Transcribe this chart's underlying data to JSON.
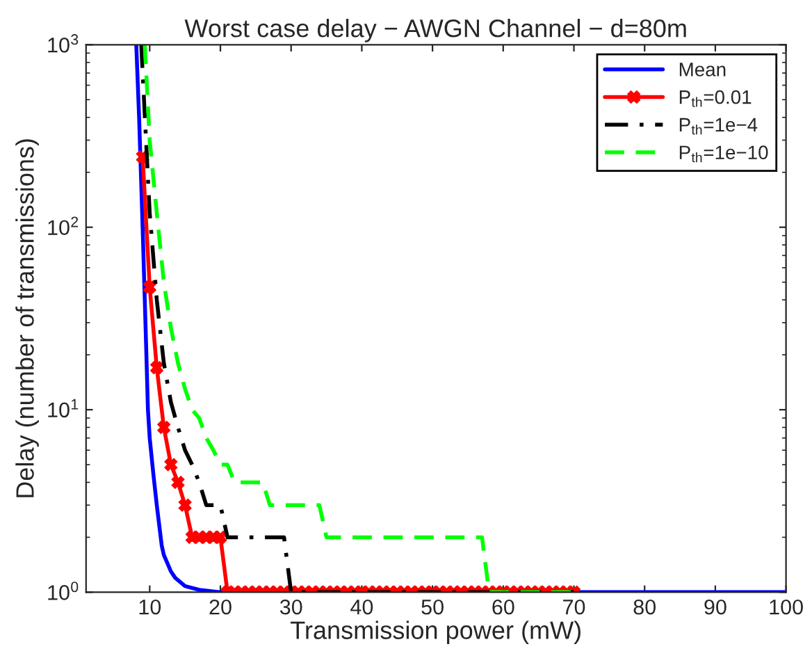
{
  "chart_data": {
    "type": "line",
    "title": "Worst case delay − AWGN Channel − d=80m",
    "xlabel": "Transmission power (mW)",
    "ylabel": "Delay (number of transmissions)",
    "log": "y",
    "xlim": [
      1,
      100
    ],
    "xticks": [
      10,
      20,
      30,
      40,
      50,
      60,
      70,
      80,
      90,
      100
    ],
    "ylim": [
      1,
      1000
    ],
    "yticks": [
      {
        "value": 1,
        "label": "10$^{0}$"
      },
      {
        "value": 10,
        "label": "10$^{1}$"
      },
      {
        "value": 100,
        "label": "10$^{2}$"
      },
      {
        "value": 1000,
        "label": "10$^{3}$"
      }
    ],
    "grid": false,
    "legend": "top right",
    "series": [
      {
        "name": "Mean",
        "color": "#0000ff",
        "line_style": "solid",
        "marker": "none",
        "x": [
          8.1,
          8.5,
          9,
          9.5,
          9.75,
          10,
          10.5,
          11,
          11.7,
          12,
          13,
          13.6,
          15,
          17,
          20,
          100
        ],
        "values": [
          1000,
          400,
          100,
          22,
          10,
          7,
          4.5,
          3,
          1.8,
          1.6,
          1.3,
          1.2,
          1.08,
          1.03,
          1,
          1
        ]
      },
      {
        "name": "P$_{th}$=0.01",
        "color": "#ff0000",
        "line_style": "solid",
        "marker": "cross",
        "x": [
          9,
          10,
          11,
          12,
          13,
          14,
          15,
          16,
          17,
          18,
          19,
          20,
          21,
          22,
          23,
          24,
          25,
          26,
          27,
          28,
          29,
          30,
          31,
          32,
          33,
          34,
          35,
          36,
          37,
          38,
          39,
          40,
          41,
          42,
          43,
          44,
          45,
          46,
          47,
          48,
          49,
          50,
          51,
          52,
          53,
          54,
          55,
          56,
          57,
          58,
          59,
          60,
          61,
          62,
          63,
          64,
          65,
          66,
          67,
          68,
          69,
          70
        ],
        "values": [
          243,
          47,
          17,
          8,
          5,
          4,
          3,
          2,
          2,
          2,
          2,
          2,
          1,
          1,
          1,
          1,
          1,
          1,
          1,
          1,
          1,
          1,
          1,
          1,
          1,
          1,
          1,
          1,
          1,
          1,
          1,
          1,
          1,
          1,
          1,
          1,
          1,
          1,
          1,
          1,
          1,
          1,
          1,
          1,
          1,
          1,
          1,
          1,
          1,
          1,
          1,
          1,
          1,
          1,
          1,
          1,
          1,
          1,
          1,
          1,
          1,
          1
        ]
      },
      {
        "name": "P$_{th}$=1e−4",
        "color": "#000000",
        "line_style": "dashdot",
        "marker": "none",
        "x": [
          8.8,
          10,
          11,
          12,
          13,
          14,
          15,
          16,
          17,
          18,
          20,
          21,
          29,
          30,
          70
        ],
        "values": [
          1000,
          120,
          40,
          18,
          11,
          8,
          6,
          5,
          4,
          3,
          3,
          2,
          2,
          1,
          1
        ]
      },
      {
        "name": "P$_{th}$=1e−10",
        "color": "#00ff00",
        "line_style": "dashed",
        "marker": "none",
        "x": [
          9.3,
          10,
          11,
          12,
          13,
          14,
          15,
          16,
          17,
          18,
          19,
          20,
          21,
          22,
          23,
          26,
          27,
          34,
          35,
          57,
          58,
          70
        ],
        "values": [
          1000,
          300,
          120,
          50,
          28,
          18,
          13,
          10,
          9,
          7,
          6,
          5,
          5,
          4,
          4,
          4,
          3,
          3,
          2,
          2,
          1,
          1
        ]
      }
    ]
  }
}
